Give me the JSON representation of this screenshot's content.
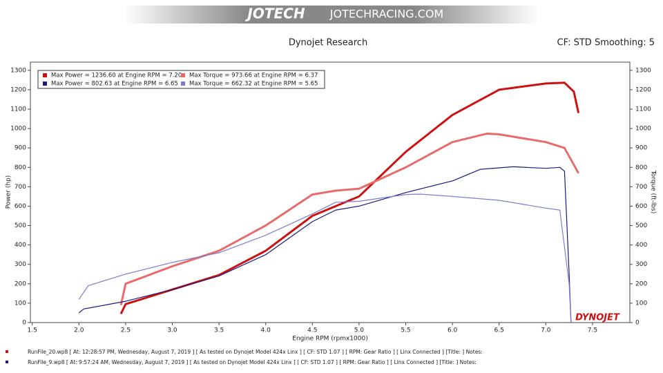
{
  "banner": {
    "logo": "JOTECH",
    "site": "JOTECHRACING.COM"
  },
  "chart_data": {
    "type": "line",
    "title": "Dynojet Research",
    "subtitle": "CF: STD Smoothing: 5",
    "xlabel": "Engine RPM (rpmx1000)",
    "ylabel": "Power (hp)",
    "y2label": "Torque (ft-lbs)",
    "logo": "DYNOJET",
    "xlim": [
      1.48,
      7.9
    ],
    "ylim": [
      0,
      1342
    ],
    "y2lim": [
      0,
      1342
    ],
    "xticks": [
      {
        "value": 1.5,
        "label": "1.5"
      },
      {
        "value": 2,
        "label": "2.0"
      },
      {
        "value": 2.5,
        "label": "2.5"
      },
      {
        "value": 3,
        "label": "3.0"
      },
      {
        "value": 3.5,
        "label": "3.5"
      },
      {
        "value": 4,
        "label": "4.0"
      },
      {
        "value": 4.5,
        "label": "4.5"
      },
      {
        "value": 5,
        "label": "5.0"
      },
      {
        "value": 5.5,
        "label": "5.5"
      },
      {
        "value": 6,
        "label": "6.0"
      },
      {
        "value": 6.5,
        "label": "6.5"
      },
      {
        "value": 7,
        "label": "7.0"
      },
      {
        "value": 7.5,
        "label": "7.5"
      }
    ],
    "yticks": [
      0,
      100,
      200,
      300,
      400,
      500,
      600,
      700,
      800,
      900,
      1000,
      1100,
      1200,
      1300
    ],
    "y2ticks": [
      0,
      100,
      200,
      300,
      400,
      500,
      600,
      700,
      800,
      900,
      1000,
      1100,
      1200,
      1300
    ],
    "series": [
      {
        "name": "Max Power = 1236.60 at Engine RPM = 7.20",
        "color": "#cc1111",
        "width": 3,
        "x": [
          2.45,
          2.5,
          3.0,
          3.5,
          4.0,
          4.5,
          5.0,
          5.5,
          6.0,
          6.5,
          7.0,
          7.2,
          7.3,
          7.35
        ],
        "values": [
          45,
          95,
          170,
          245,
          370,
          550,
          650,
          880,
          1070,
          1200,
          1232,
          1236,
          1190,
          1080
        ]
      },
      {
        "name": "Max Torque = 973.66 at Engine RPM = 6.37",
        "color": "#e86a6a",
        "width": 3,
        "axis": "y2",
        "x": [
          2.45,
          2.5,
          3.0,
          3.5,
          4.0,
          4.5,
          4.75,
          5.0,
          5.5,
          6.0,
          6.37,
          6.5,
          7.0,
          7.2,
          7.35
        ],
        "values": [
          90,
          200,
          290,
          370,
          500,
          660,
          680,
          690,
          800,
          930,
          974,
          970,
          930,
          900,
          770
        ]
      },
      {
        "name": "Max Power = 802.63 at Engine RPM = 6.65",
        "color": "#1a1a80",
        "width": 1.2,
        "x": [
          2.0,
          2.05,
          2.5,
          3.0,
          3.5,
          4.0,
          4.5,
          4.75,
          5.0,
          5.5,
          6.0,
          6.3,
          6.65,
          7.0,
          7.15,
          7.2,
          7.25,
          7.27
        ],
        "values": [
          50,
          70,
          110,
          170,
          240,
          350,
          520,
          580,
          600,
          670,
          730,
          790,
          803,
          795,
          800,
          780,
          250,
          0
        ]
      },
      {
        "name": "Max Torque = 662.32 at Engine RPM = 5.65",
        "color": "#7b7bd0",
        "width": 1.2,
        "axis": "y2",
        "x": [
          2.0,
          2.1,
          2.5,
          3.0,
          3.5,
          4.0,
          4.5,
          4.75,
          5.0,
          5.5,
          5.65,
          6.0,
          6.5,
          7.0,
          7.15,
          7.25,
          7.27
        ],
        "values": [
          120,
          190,
          250,
          310,
          360,
          450,
          560,
          620,
          625,
          660,
          662,
          650,
          630,
          590,
          580,
          200,
          0
        ]
      }
    ]
  },
  "footer": {
    "notes": [
      "RunFile_20.wp8  [ At: 12:28:57 PM, Wednesday, August 7, 2019 ]  [ As tested on Dynojet Model 424x Linx ]  [ CF: STD 1.07 ]  [ RPM: Gear Ratio ]  [ Linx Connected ]  [Title: ]   Notes:",
      "RunFile_9.wp8  [ At: 9:57:24 AM, Wednesday, August 7, 2019 ]  [ As tested on Dynojet Model 424x Linx ]  [ CF: STD 1.07 ]  [ RPM: Gear Ratio ]  [ Linx Connected ]  [Title: ]   Notes:"
    ]
  }
}
